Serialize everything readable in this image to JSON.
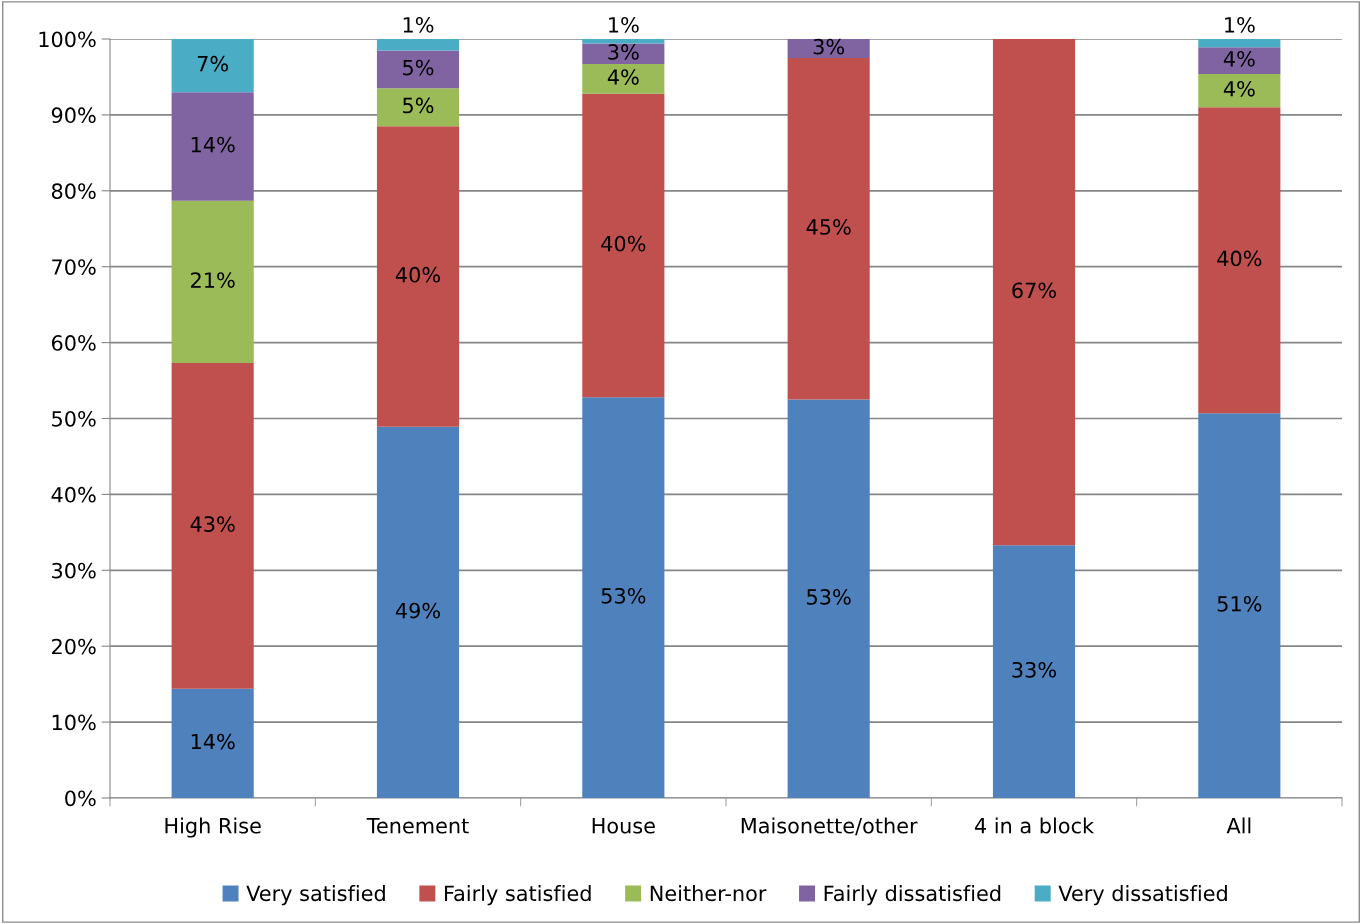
{
  "chart_data": {
    "type": "bar",
    "stacked": true,
    "categories": [
      "High Rise",
      "Tenement",
      "House",
      "Maisonette/other",
      "4 in a block",
      "All"
    ],
    "series": [
      {
        "name": "Very satisfied",
        "color": "#4f81bd",
        "values": [
          14.4,
          48.9,
          52.8,
          52.5,
          33.3,
          50.7
        ],
        "value_labels": [
          "14%",
          "49%",
          "53%",
          "53%",
          "33%",
          "51%"
        ]
      },
      {
        "name": "Fairly satisfied",
        "color": "#c0504d",
        "values": [
          42.9,
          39.6,
          40.0,
          45.0,
          66.7,
          40.3
        ],
        "value_labels": [
          "43%",
          "40%",
          "40%",
          "45%",
          "67%",
          "40%"
        ]
      },
      {
        "name": "Neither-nor",
        "color": "#9bbb59",
        "values": [
          21.4,
          5.0,
          3.9,
          null,
          null,
          4.4
        ],
        "value_labels": [
          "21%",
          "5%",
          "4%",
          null,
          null,
          "4%"
        ]
      },
      {
        "name": "Fairly dissatisfied",
        "color": "#8064a2",
        "values": [
          14.3,
          5.0,
          2.7,
          2.5,
          null,
          3.5
        ],
        "value_labels": [
          "14%",
          "5%",
          "3%",
          "3%",
          null,
          "4%"
        ]
      },
      {
        "name": "Very dissatisfied",
        "color": "#4bacc6",
        "values": [
          7.0,
          1.5,
          0.6,
          null,
          null,
          1.1
        ],
        "value_labels": [
          "7%",
          "1%",
          "1%",
          null,
          null,
          "1%"
        ]
      }
    ],
    "ylim": [
      0,
      100
    ],
    "yticks": [
      {
        "value": 0,
        "label": "0%"
      },
      {
        "value": 10,
        "label": "10%"
      },
      {
        "value": 20,
        "label": "20%"
      },
      {
        "value": 30,
        "label": "30%"
      },
      {
        "value": 40,
        "label": "40%"
      },
      {
        "value": 50,
        "label": "50%"
      },
      {
        "value": 60,
        "label": "60%"
      },
      {
        "value": 70,
        "label": "70%"
      },
      {
        "value": 80,
        "label": "80%"
      },
      {
        "value": 90,
        "label": "90%"
      },
      {
        "value": 100,
        "label": "100%"
      }
    ],
    "grid": "y",
    "legend": "bottom"
  }
}
